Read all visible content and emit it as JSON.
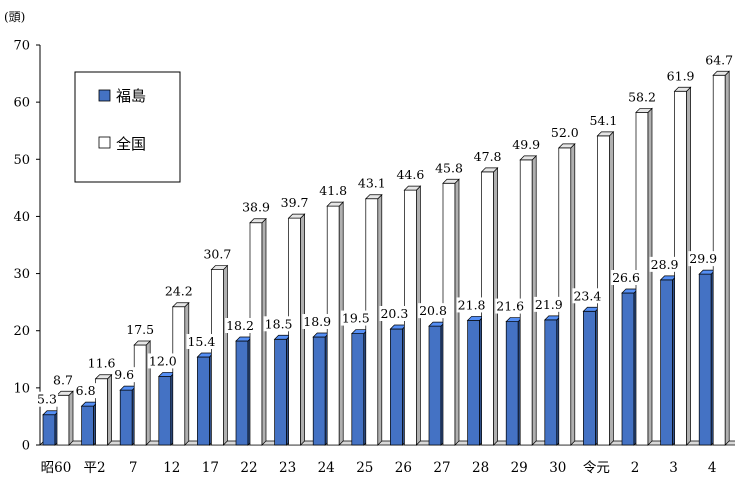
{
  "chart_data": {
    "type": "bar",
    "title": "",
    "y_unit": "(頭)",
    "ylim": [
      0,
      70
    ],
    "yticks": [
      0,
      10,
      20,
      30,
      40,
      50,
      60,
      70
    ],
    "grid": false,
    "legend_position": "top-left",
    "categories": [
      "昭60",
      "平2",
      "7",
      "12",
      "17",
      "22",
      "23",
      "24",
      "25",
      "26",
      "27",
      "28",
      "29",
      "30",
      "令元",
      "2",
      "3",
      "4"
    ],
    "series": [
      {
        "name": "福島",
        "color": "#4472C4",
        "values": [
          5.3,
          6.8,
          9.6,
          12.0,
          15.4,
          18.2,
          18.5,
          18.9,
          19.5,
          20.3,
          20.8,
          21.8,
          21.6,
          21.9,
          23.4,
          26.6,
          28.9,
          29.9
        ],
        "labels": [
          "5.3",
          "6.8",
          "9.6",
          "12.0",
          "15.4",
          "18.2",
          "18.5",
          "18.9",
          "19.5",
          "20.3",
          "20.8",
          "21.8",
          "21.6",
          "21.9",
          "23.4",
          "26.6",
          "28.9",
          "29.9"
        ]
      },
      {
        "name": "全国",
        "color": "#FFFFFF",
        "values": [
          8.7,
          11.6,
          17.5,
          24.2,
          30.7,
          38.9,
          39.7,
          41.8,
          43.1,
          44.6,
          45.8,
          47.8,
          49.9,
          52.0,
          54.1,
          58.2,
          61.9,
          64.7
        ],
        "labels": [
          "8.7",
          "11.6",
          "17.5",
          "24.2",
          "30.7",
          "38.9",
          "39.7",
          "41.8",
          "43.1",
          "44.6",
          "45.8",
          "47.8",
          "49.9",
          "52.0",
          "54.1",
          "58.2",
          "61.9",
          "64.7"
        ]
      }
    ]
  }
}
